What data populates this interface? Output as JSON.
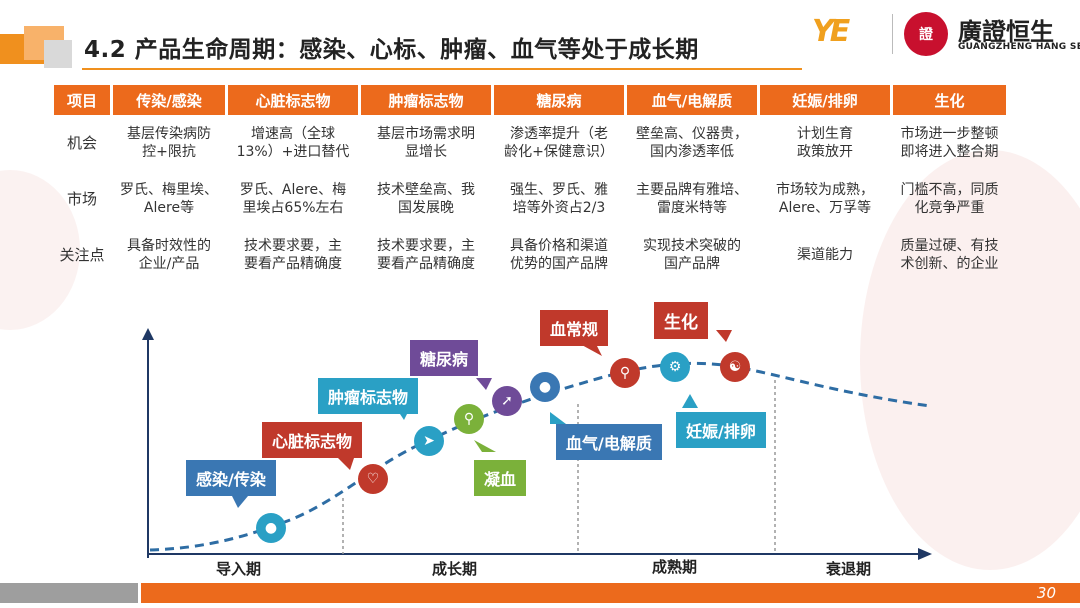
{
  "header": {
    "title": "4.2 产品生命周期：感染、心标、肿瘤、血气等处于成长期"
  },
  "logo": {
    "mark": "YE",
    "seal_text": "證",
    "name_cn": "廣證恒生",
    "name_en": "GUANGZHENG HANG SENG"
  },
  "table": {
    "headers": [
      "项目",
      "传染/感染",
      "心脏标志物",
      "肿瘤标志物",
      "糖尿病",
      "血气/电解质",
      "妊娠/排卵",
      "生化"
    ],
    "rows": [
      {
        "label": "机会",
        "cells": [
          "基层传染病防\n控+限抗",
          "增速高（全球\n13%）+进口替代",
          "基层市场需求明\n显增长",
          "渗透率提升（老\n龄化+保健意识）",
          "壁垒高、仪器贵，\n国内渗透率低",
          "计划生育\n政策放开",
          "市场进一步整顿\n即将进入整合期"
        ]
      },
      {
        "label": "市场",
        "cells": [
          "罗氏、梅里埃、\nAlere等",
          "罗氏、Alere、梅\n里埃占65%左右",
          "技术壁垒高、我\n国发展晚",
          "强生、罗氏、雅\n培等外资占2/3",
          "主要品牌有雅培、\n雷度米特等",
          "市场较为成熟，\nAlere、万孚等",
          "门槛不高，同质\n化竞争严重"
        ]
      },
      {
        "label": "关注点",
        "cells": [
          "具备时效性的\n企业/产品",
          "技术要求要，主\n要看产品精确度",
          "技术要求要，主\n要看产品精确度",
          "具备价格和渠道\n优势的国产品牌",
          "实现技术突破的\n国产品牌",
          "渠道能力",
          "质量过硬、有技\n术创新、的企业"
        ]
      }
    ]
  },
  "lifecycle": {
    "stages": [
      "导入期",
      "成长期",
      "成熟期",
      "衰退期"
    ],
    "tags": {
      "infection": "感染/传染",
      "cardiac": "心脏标志物",
      "tumor": "肿瘤标志物",
      "diabetes": "糖尿病",
      "blood_routine": "血常规",
      "biochem": "生化",
      "coagulation": "凝血",
      "blood_gas": "血气/电解质",
      "pregnancy": "妊娠/排卵"
    },
    "icons": {
      "infection": "lightbulb-icon",
      "cardiac": "heart-icon",
      "tumor": "paper-plane-icon",
      "coagulation": "magnifier-icon",
      "diabetes": "arrow-up-icon",
      "blood_gas": "people-icon",
      "blood_routine": "search-icon",
      "pregnancy": "gear-icon",
      "biochem": "network-icon"
    },
    "colors": {
      "orange": "#ec6a1c",
      "curve": "#2e6da4",
      "red": "#c0392b",
      "blue": "#3a77b3",
      "purple": "#6f4b98",
      "green": "#7bb13a",
      "teal": "#2aa0c5"
    }
  },
  "footer": {
    "page_number": "30"
  }
}
